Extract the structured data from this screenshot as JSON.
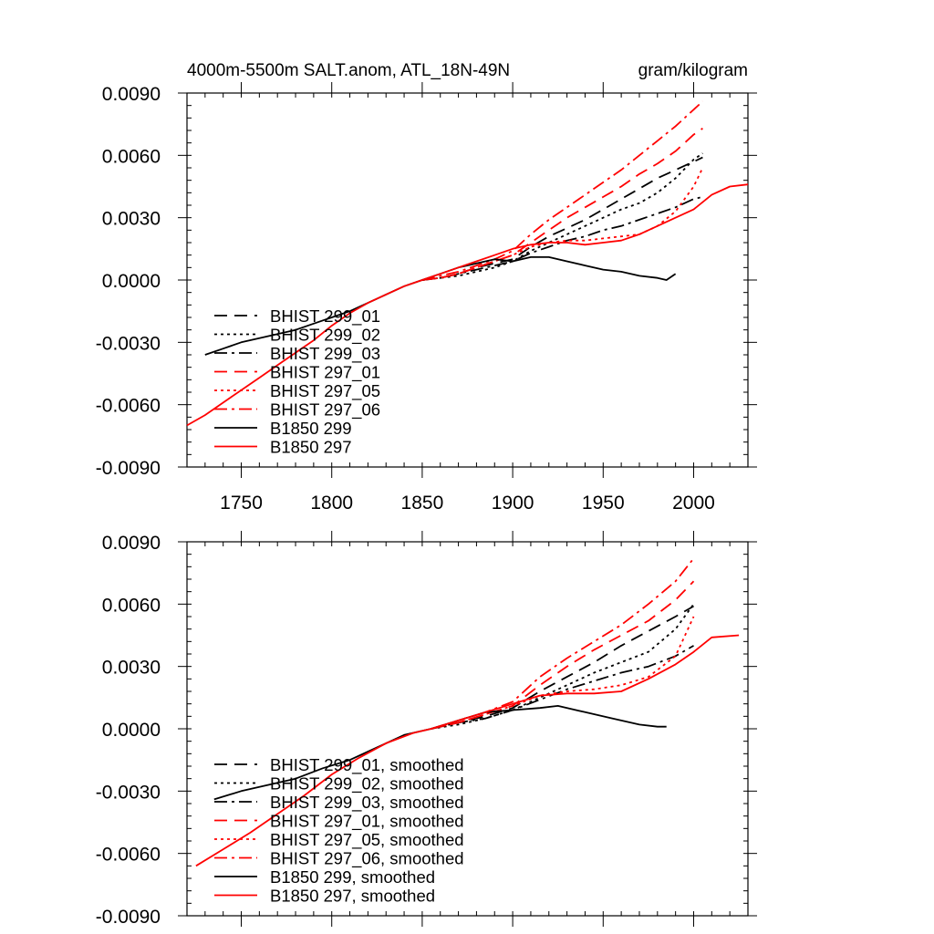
{
  "chart_data": [
    {
      "type": "line",
      "title_left": "4000m-5500m SALT.anom, ATL_18N-49N",
      "title_right": "gram/kilogram",
      "xlabel": "",
      "ylabel": "",
      "xlim": [
        1720,
        2030
      ],
      "ylim": [
        -0.009,
        0.009
      ],
      "xticks": [
        1750,
        1800,
        1850,
        1900,
        1950,
        2000
      ],
      "xtick_labels": [
        "1750",
        "1800",
        "1850",
        "1900",
        "1950",
        "2000"
      ],
      "yticks": [
        0.009,
        0.006,
        0.003,
        0.0,
        -0.003,
        -0.006,
        -0.009
      ],
      "ytick_labels": [
        "0.0090",
        "0.0060",
        "0.0030",
        "0.0000",
        "-0.0030",
        "-0.0060",
        "-0.0090"
      ],
      "legend_position": "bottom-left",
      "series": [
        {
          "name": "BHIST 299_01",
          "color": "#000000",
          "dash": "dash",
          "x": [
            1850,
            1860,
            1870,
            1880,
            1890,
            1900,
            1910,
            1920,
            1930,
            1940,
            1950,
            1960,
            1970,
            1980,
            1990,
            2000,
            2005
          ],
          "y": [
            0.0,
            0.0001,
            0.0003,
            0.0006,
            0.0008,
            0.001,
            0.0016,
            0.0021,
            0.0025,
            0.0029,
            0.0034,
            0.0039,
            0.0044,
            0.0049,
            0.0053,
            0.0057,
            0.0059
          ]
        },
        {
          "name": "BHIST 299_02",
          "color": "#000000",
          "dash": "dot",
          "x": [
            1850,
            1860,
            1870,
            1880,
            1890,
            1900,
            1910,
            1920,
            1930,
            1940,
            1950,
            1960,
            1970,
            1980,
            1990,
            2000,
            2005
          ],
          "y": [
            0.0,
            0.0001,
            0.0002,
            0.0004,
            0.0006,
            0.0009,
            0.0014,
            0.0018,
            0.0022,
            0.0026,
            0.003,
            0.0034,
            0.0037,
            0.0042,
            0.0049,
            0.0058,
            0.0061
          ]
        },
        {
          "name": "BHIST 299_03",
          "color": "#000000",
          "dash": "dashdot",
          "x": [
            1850,
            1860,
            1870,
            1880,
            1890,
            1900,
            1910,
            1920,
            1930,
            1940,
            1950,
            1960,
            1970,
            1980,
            1990,
            2000,
            2005
          ],
          "y": [
            0.0,
            0.0001,
            0.0003,
            0.0005,
            0.0007,
            0.0009,
            0.0013,
            0.0016,
            0.0019,
            0.0021,
            0.0024,
            0.0026,
            0.0029,
            0.0032,
            0.0035,
            0.0039,
            0.004
          ]
        },
        {
          "name": "BHIST 297_01",
          "color": "#ff0000",
          "dash": "dash",
          "x": [
            1850,
            1860,
            1870,
            1880,
            1890,
            1900,
            1910,
            1920,
            1930,
            1940,
            1950,
            1960,
            1970,
            1980,
            1990,
            2000,
            2005
          ],
          "y": [
            0.0,
            0.0001,
            0.0003,
            0.0006,
            0.0009,
            0.0012,
            0.0018,
            0.0024,
            0.003,
            0.0035,
            0.004,
            0.0045,
            0.0051,
            0.0056,
            0.0062,
            0.007,
            0.0073
          ]
        },
        {
          "name": "BHIST 297_05",
          "color": "#ff0000",
          "dash": "dot",
          "x": [
            1850,
            1860,
            1870,
            1880,
            1890,
            1900,
            1910,
            1920,
            1930,
            1940,
            1950,
            1960,
            1970,
            1980,
            1990,
            2000,
            2005
          ],
          "y": [
            0.0,
            0.0001,
            0.0003,
            0.0006,
            0.0009,
            0.0012,
            0.0016,
            0.0018,
            0.0019,
            0.0019,
            0.002,
            0.0021,
            0.0022,
            0.0026,
            0.0033,
            0.0045,
            0.0054
          ]
        },
        {
          "name": "BHIST 297_06",
          "color": "#ff0000",
          "dash": "dashdot",
          "x": [
            1850,
            1860,
            1870,
            1880,
            1890,
            1900,
            1910,
            1920,
            1930,
            1940,
            1950,
            1960,
            1970,
            1980,
            1990,
            2000,
            2005
          ],
          "y": [
            0.0,
            0.0002,
            0.0004,
            0.0007,
            0.001,
            0.0014,
            0.0022,
            0.0029,
            0.0035,
            0.0041,
            0.0047,
            0.0053,
            0.006,
            0.0067,
            0.0074,
            0.0082,
            0.0086
          ]
        },
        {
          "name": "B1850 299",
          "color": "#000000",
          "dash": "solid",
          "x": [
            1730,
            1740,
            1750,
            1760,
            1770,
            1780,
            1790,
            1800,
            1810,
            1820,
            1830,
            1840,
            1850,
            1860,
            1870,
            1880,
            1890,
            1900,
            1910,
            1920,
            1930,
            1940,
            1950,
            1960,
            1970,
            1980,
            1985,
            1990
          ],
          "y": [
            -0.0036,
            -0.0033,
            -0.003,
            -0.0028,
            -0.0026,
            -0.0024,
            -0.0021,
            -0.0018,
            -0.0015,
            -0.0011,
            -0.0007,
            -0.0003,
            0.0,
            0.0003,
            0.0006,
            0.0008,
            0.001,
            0.0009,
            0.0011,
            0.0011,
            0.0009,
            0.0007,
            0.0005,
            0.0004,
            0.0002,
            0.0001,
            0.0,
            0.0003
          ]
        },
        {
          "name": "B1850 297",
          "color": "#ff0000",
          "dash": "solid",
          "x": [
            1720,
            1730,
            1740,
            1750,
            1760,
            1770,
            1780,
            1790,
            1800,
            1810,
            1820,
            1830,
            1840,
            1850,
            1860,
            1870,
            1880,
            1890,
            1900,
            1910,
            1920,
            1930,
            1940,
            1950,
            1960,
            1970,
            1980,
            1990,
            2000,
            2010,
            2020,
            2030
          ],
          "y": [
            -0.007,
            -0.0065,
            -0.0059,
            -0.0053,
            -0.0047,
            -0.0041,
            -0.0035,
            -0.0029,
            -0.0022,
            -0.0016,
            -0.0011,
            -0.0007,
            -0.0003,
            0.0,
            0.0003,
            0.0006,
            0.0009,
            0.0012,
            0.0015,
            0.0017,
            0.0018,
            0.0018,
            0.0017,
            0.0018,
            0.0019,
            0.0022,
            0.0026,
            0.003,
            0.0034,
            0.0041,
            0.0045,
            0.0046
          ]
        }
      ]
    },
    {
      "type": "line",
      "title_left": "",
      "title_right": "",
      "xlabel": "",
      "ylabel": "",
      "xlim": [
        1720,
        2030
      ],
      "ylim": [
        -0.009,
        0.009
      ],
      "xticks": [
        1750,
        1800,
        1850,
        1900,
        1950,
        2000
      ],
      "xtick_labels": [],
      "yticks": [
        0.009,
        0.006,
        0.003,
        0.0,
        -0.003,
        -0.006,
        -0.009
      ],
      "ytick_labels": [
        "0.0090",
        "0.0060",
        "0.0030",
        "0.0000",
        "-0.0030",
        "-0.0060",
        "-0.0090"
      ],
      "legend_position": "bottom-left",
      "series": [
        {
          "name": "BHIST 299_01, smoothed",
          "color": "#000000",
          "dash": "dash",
          "x": [
            1855,
            1870,
            1885,
            1900,
            1915,
            1930,
            1945,
            1960,
            1975,
            1990,
            2000
          ],
          "y": [
            0.0,
            0.0003,
            0.0006,
            0.001,
            0.0018,
            0.0025,
            0.0032,
            0.004,
            0.0047,
            0.0054,
            0.0059
          ]
        },
        {
          "name": "BHIST 299_02, smoothed",
          "color": "#000000",
          "dash": "dot",
          "x": [
            1855,
            1870,
            1885,
            1900,
            1915,
            1930,
            1945,
            1960,
            1975,
            1990,
            2000
          ],
          "y": [
            0.0,
            0.0002,
            0.0005,
            0.0009,
            0.0015,
            0.0021,
            0.0027,
            0.0032,
            0.0037,
            0.0048,
            0.006
          ]
        },
        {
          "name": "BHIST 299_03, smoothed",
          "color": "#000000",
          "dash": "dashdot",
          "x": [
            1855,
            1870,
            1885,
            1900,
            1915,
            1930,
            1945,
            1960,
            1975,
            1990,
            2000
          ],
          "y": [
            0.0,
            0.0003,
            0.0005,
            0.0009,
            0.0014,
            0.0019,
            0.0023,
            0.0027,
            0.003,
            0.0035,
            0.004
          ]
        },
        {
          "name": "BHIST 297_01, smoothed",
          "color": "#ff0000",
          "dash": "dash",
          "x": [
            1855,
            1870,
            1885,
            1900,
            1915,
            1930,
            1945,
            1960,
            1975,
            1990,
            2000
          ],
          "y": [
            0.0,
            0.0003,
            0.0007,
            0.0011,
            0.0021,
            0.003,
            0.0038,
            0.0045,
            0.0052,
            0.0062,
            0.0071
          ]
        },
        {
          "name": "BHIST 297_05, smoothed",
          "color": "#ff0000",
          "dash": "dot",
          "x": [
            1855,
            1870,
            1885,
            1900,
            1915,
            1930,
            1945,
            1960,
            1975,
            1990,
            2000
          ],
          "y": [
            0.0,
            0.0003,
            0.0007,
            0.0011,
            0.0016,
            0.0018,
            0.0019,
            0.0021,
            0.0025,
            0.0035,
            0.0054
          ]
        },
        {
          "name": "BHIST 297_06, smoothed",
          "color": "#ff0000",
          "dash": "dashdot",
          "x": [
            1855,
            1870,
            1885,
            1900,
            1915,
            1930,
            1945,
            1960,
            1975,
            1990,
            2000
          ],
          "y": [
            0.0,
            0.0004,
            0.0008,
            0.0013,
            0.0025,
            0.0034,
            0.0042,
            0.005,
            0.006,
            0.0071,
            0.0082
          ]
        },
        {
          "name": "B1850 299, smoothed",
          "color": "#000000",
          "dash": "solid",
          "x": [
            1735,
            1750,
            1765,
            1780,
            1795,
            1810,
            1825,
            1840,
            1855,
            1870,
            1885,
            1900,
            1915,
            1925,
            1940,
            1955,
            1970,
            1980,
            1985
          ],
          "y": [
            -0.0034,
            -0.003,
            -0.0027,
            -0.0024,
            -0.0019,
            -0.0015,
            -0.0009,
            -0.0003,
            0.0,
            0.0004,
            0.0008,
            0.0009,
            0.001,
            0.0011,
            0.0008,
            0.0005,
            0.0002,
            0.0001,
            0.0001
          ]
        },
        {
          "name": "B1850 297, smoothed",
          "color": "#ff0000",
          "dash": "solid",
          "x": [
            1725,
            1740,
            1755,
            1770,
            1785,
            1800,
            1815,
            1830,
            1845,
            1855,
            1870,
            1885,
            1900,
            1915,
            1930,
            1945,
            1960,
            1975,
            1990,
            2000,
            2010,
            2025
          ],
          "y": [
            -0.0066,
            -0.0058,
            -0.005,
            -0.0041,
            -0.0032,
            -0.0022,
            -0.0014,
            -0.0007,
            -0.0002,
            0.0,
            0.0004,
            0.0008,
            0.0012,
            0.0016,
            0.0017,
            0.0017,
            0.0018,
            0.0024,
            0.0031,
            0.0037,
            0.0044,
            0.0045
          ]
        }
      ]
    }
  ]
}
